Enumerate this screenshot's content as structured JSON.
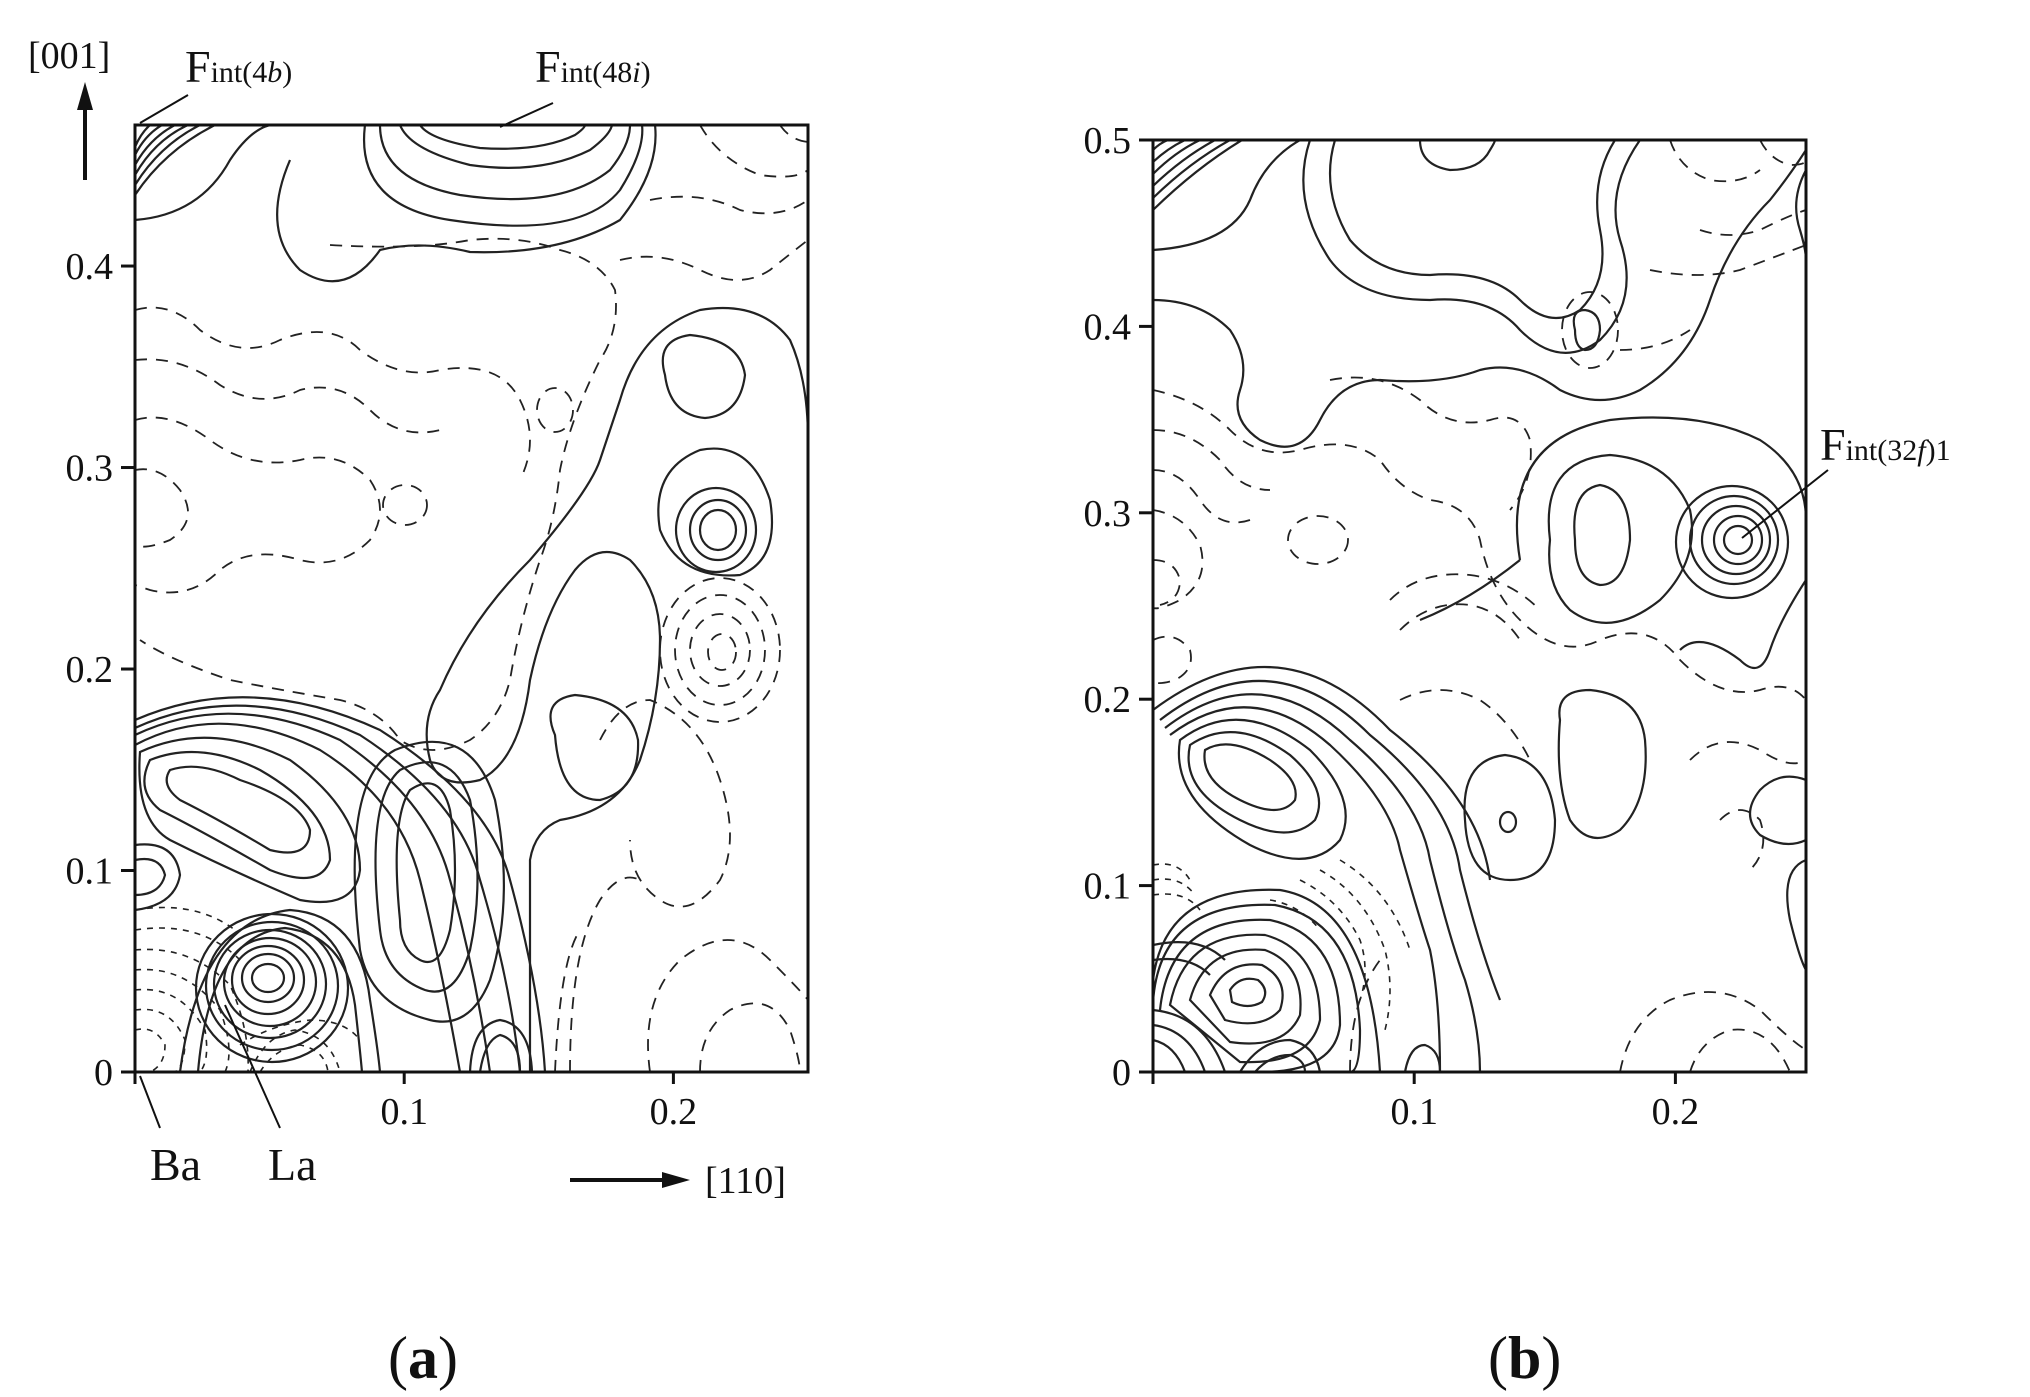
{
  "chart_data": [
    {
      "panel": "a",
      "type": "contour",
      "caption_open": "(",
      "caption_letter": "a",
      "caption_close": ")",
      "xlim": [
        0,
        0.25
      ],
      "ylim": [
        0,
        0.47
      ],
      "xticks": [
        "0.1",
        "0.2"
      ],
      "yticks": [
        "0",
        "0.1",
        "0.2",
        "0.3",
        "0.4"
      ],
      "ytick_values": [
        0,
        0.1,
        0.2,
        0.3,
        0.4
      ],
      "xtick_values": [
        0.1,
        0.2
      ],
      "x_direction_label": "[110]",
      "y_direction_label": "[001]",
      "line_styles": [
        "solid = positive density",
        "dashed = negative density"
      ],
      "annotations": [
        {
          "main": "F",
          "sub": "int(4",
          "ital": "b",
          "end": ")",
          "x": 0.0,
          "y": 0.47
        },
        {
          "main": "F",
          "sub": "int(48",
          "ital": "i",
          "end": ")",
          "x": 0.14,
          "y": 0.47
        }
      ],
      "atom_labels": [
        {
          "text": "Ba",
          "x": 0.0,
          "y": 0.0
        },
        {
          "text": "La",
          "x": 0.05,
          "y": 0.05
        }
      ],
      "features": [
        {
          "kind": "peak",
          "x": 0.05,
          "y": 0.05,
          "sign": "positive",
          "strength": "strong"
        },
        {
          "kind": "peak",
          "x": 0.215,
          "y": 0.275,
          "sign": "positive"
        },
        {
          "kind": "trough",
          "x": 0.215,
          "y": 0.215,
          "sign": "negative"
        },
        {
          "kind": "peak",
          "x": 0.12,
          "y": 0.46,
          "sign": "positive"
        },
        {
          "kind": "peak",
          "x": 0.01,
          "y": 0.47,
          "sign": "positive"
        }
      ]
    },
    {
      "panel": "b",
      "type": "contour",
      "caption_open": "(",
      "caption_letter": "b",
      "caption_close": ")",
      "xlim": [
        0,
        0.25
      ],
      "ylim": [
        0,
        0.5
      ],
      "xticks": [
        "0.1",
        "0.2"
      ],
      "yticks": [
        "0",
        "0.1",
        "0.2",
        "0.3",
        "0.4",
        "0.5"
      ],
      "ytick_values": [
        0,
        0.1,
        0.2,
        0.3,
        0.4,
        0.5
      ],
      "xtick_values": [
        0.1,
        0.2
      ],
      "line_styles": [
        "solid = positive density",
        "dashed = negative density"
      ],
      "annotations": [
        {
          "main": "F",
          "sub": "int(32",
          "ital": "f",
          "end": ")1",
          "x": 0.22,
          "y": 0.27
        }
      ],
      "features": [
        {
          "kind": "peak",
          "x": 0.04,
          "y": 0.05,
          "sign": "positive",
          "strength": "strong"
        },
        {
          "kind": "peak",
          "x": 0.22,
          "y": 0.27,
          "sign": "positive"
        },
        {
          "kind": "peak",
          "x": 0.0,
          "y": 0.5,
          "sign": "positive"
        },
        {
          "kind": "peak",
          "x": 0.135,
          "y": 0.135,
          "sign": "positive"
        }
      ]
    }
  ]
}
